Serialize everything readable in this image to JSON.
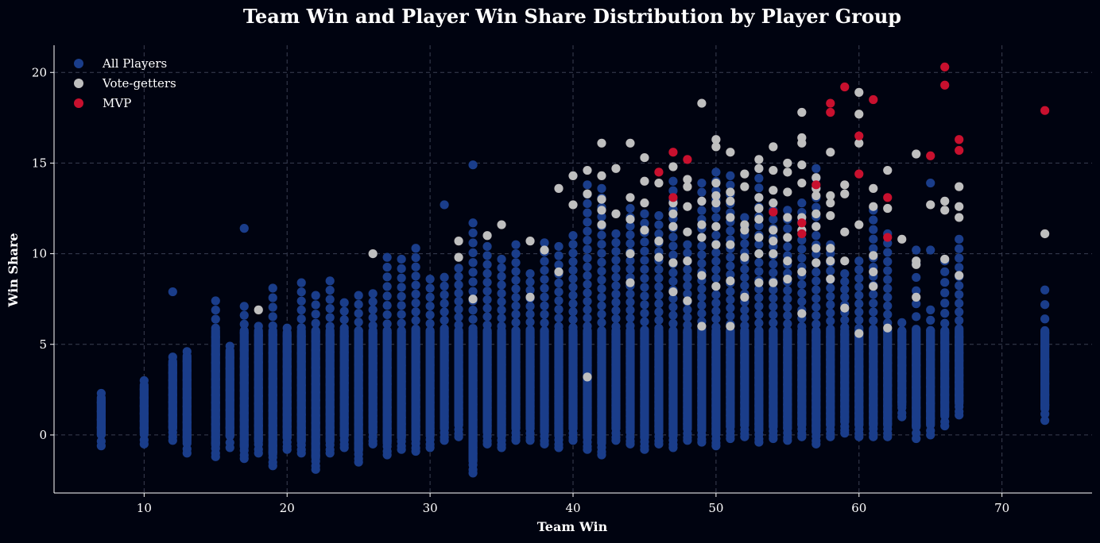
{
  "chart_data": {
    "type": "scatter",
    "title": "Team Win and Player Win Share Distribution by Player Group",
    "xlabel": "Team Win",
    "ylabel": "Win Share",
    "xlim": [
      3.7,
      76.3
    ],
    "ylim": [
      -3.2,
      21.5
    ],
    "xticks": [
      10,
      20,
      30,
      40,
      50,
      60,
      70
    ],
    "yticks": [
      0,
      5,
      10,
      15,
      20
    ],
    "grid": true,
    "legend_position": "top-left",
    "series": [
      {
        "name": "All Players",
        "color": "#1a3d8a",
        "columns": [
          {
            "x": 7,
            "min": -0.6,
            "max": 2.3,
            "n": 8
          },
          {
            "x": 10,
            "min": -0.5,
            "max": 3.0,
            "n": 10
          },
          {
            "x": 12,
            "min": -0.3,
            "max": 4.3,
            "n": 14,
            "extra": [
              7.9
            ]
          },
          {
            "x": 13,
            "min": -1.0,
            "max": 4.6,
            "n": 14
          },
          {
            "x": 15,
            "min": -1.2,
            "max": 7.4,
            "n": 22
          },
          {
            "x": 16,
            "min": -0.7,
            "max": 4.9,
            "n": 12
          },
          {
            "x": 17,
            "min": -1.3,
            "max": 7.1,
            "n": 22,
            "extra": [
              11.4
            ]
          },
          {
            "x": 18,
            "min": -1.0,
            "max": 6.0,
            "n": 18
          },
          {
            "x": 19,
            "min": -1.7,
            "max": 8.1,
            "n": 24
          },
          {
            "x": 20,
            "min": -0.8,
            "max": 5.9,
            "n": 20
          },
          {
            "x": 21,
            "min": -1.0,
            "max": 8.4,
            "n": 24
          },
          {
            "x": 22,
            "min": -1.9,
            "max": 7.7,
            "n": 24
          },
          {
            "x": 23,
            "min": -1.0,
            "max": 8.5,
            "n": 24
          },
          {
            "x": 24,
            "min": -0.7,
            "max": 7.3,
            "n": 22
          },
          {
            "x": 25,
            "min": -1.5,
            "max": 7.7,
            "n": 24
          },
          {
            "x": 26,
            "min": -0.5,
            "max": 7.8,
            "n": 24
          },
          {
            "x": 27,
            "min": -1.1,
            "max": 9.8,
            "n": 26
          },
          {
            "x": 28,
            "min": -0.8,
            "max": 9.7,
            "n": 26
          },
          {
            "x": 29,
            "min": -0.9,
            "max": 10.3,
            "n": 28
          },
          {
            "x": 30,
            "min": -0.7,
            "max": 8.6,
            "n": 24
          },
          {
            "x": 31,
            "min": -0.3,
            "max": 8.7,
            "n": 24,
            "extra": [
              12.7
            ]
          },
          {
            "x": 32,
            "min": -0.1,
            "max": 9.2,
            "n": 26
          },
          {
            "x": 33,
            "min": -2.1,
            "max": 11.7,
            "n": 32,
            "extra": [
              14.9
            ]
          },
          {
            "x": 34,
            "min": -0.5,
            "max": 10.4,
            "n": 28
          },
          {
            "x": 35,
            "min": -0.7,
            "max": 9.7,
            "n": 28
          },
          {
            "x": 36,
            "min": -0.3,
            "max": 10.5,
            "n": 28
          },
          {
            "x": 37,
            "min": -0.3,
            "max": 8.9,
            "n": 26
          },
          {
            "x": 38,
            "min": -0.5,
            "max": 10.6,
            "n": 28
          },
          {
            "x": 39,
            "min": -0.7,
            "max": 10.4,
            "n": 28
          },
          {
            "x": 40,
            "min": -0.3,
            "max": 11.0,
            "n": 30
          },
          {
            "x": 41,
            "min": -0.8,
            "max": 13.8,
            "n": 36
          },
          {
            "x": 42,
            "min": -1.1,
            "max": 13.6,
            "n": 36
          },
          {
            "x": 43,
            "min": -0.3,
            "max": 11.1,
            "n": 30
          },
          {
            "x": 44,
            "min": -0.5,
            "max": 12.5,
            "n": 34
          },
          {
            "x": 45,
            "min": -0.8,
            "max": 12.2,
            "n": 32
          },
          {
            "x": 46,
            "min": -0.5,
            "max": 12.1,
            "n": 32
          },
          {
            "x": 47,
            "min": -0.7,
            "max": 14.0,
            "n": 36
          },
          {
            "x": 48,
            "min": -0.3,
            "max": 10.5,
            "n": 30
          },
          {
            "x": 49,
            "min": -0.4,
            "max": 13.9,
            "n": 36
          },
          {
            "x": 50,
            "min": -0.6,
            "max": 14.5,
            "n": 38
          },
          {
            "x": 51,
            "min": -0.2,
            "max": 14.3,
            "n": 36
          },
          {
            "x": 52,
            "min": -0.1,
            "max": 12.0,
            "n": 32
          },
          {
            "x": 53,
            "min": -0.4,
            "max": 14.7,
            "n": 36
          },
          {
            "x": 54,
            "min": -0.2,
            "max": 12.4,
            "n": 32
          },
          {
            "x": 55,
            "min": -0.3,
            "max": 12.4,
            "n": 32
          },
          {
            "x": 56,
            "min": -0.1,
            "max": 12.8,
            "n": 32
          },
          {
            "x": 57,
            "min": -0.5,
            "max": 14.7,
            "n": 36
          },
          {
            "x": 58,
            "min": -0.1,
            "max": 10.5,
            "n": 28
          },
          {
            "x": 59,
            "min": 0.1,
            "max": 8.9,
            "n": 26
          },
          {
            "x": 60,
            "min": -0.1,
            "max": 9.6,
            "n": 26
          },
          {
            "x": 61,
            "min": -0.1,
            "max": 12.4,
            "n": 30
          },
          {
            "x": 62,
            "min": -0.1,
            "max": 11.1,
            "n": 28
          },
          {
            "x": 63,
            "min": 1.0,
            "max": 6.2,
            "n": 14
          },
          {
            "x": 64,
            "min": -0.2,
            "max": 10.2,
            "n": 18
          },
          {
            "x": 65,
            "min": 0.0,
            "max": 6.9,
            "n": 16,
            "extra": [
              13.9,
              10.2
            ]
          },
          {
            "x": 66,
            "min": 0.5,
            "max": 9.6,
            "n": 20
          },
          {
            "x": 67,
            "min": 1.1,
            "max": 10.8,
            "n": 24
          },
          {
            "x": 73,
            "min": 0.8,
            "max": 8.0,
            "n": 12
          }
        ]
      },
      {
        "name": "Vote-getters",
        "color": "#bfbfbf",
        "points": [
          [
            18,
            6.9
          ],
          [
            26,
            10.0
          ],
          [
            32,
            10.7
          ],
          [
            32,
            9.8
          ],
          [
            33,
            7.5
          ],
          [
            34,
            11.0
          ],
          [
            35,
            11.6
          ],
          [
            37,
            10.7
          ],
          [
            37,
            7.6
          ],
          [
            38,
            10.2
          ],
          [
            39,
            13.6
          ],
          [
            39,
            9.0
          ],
          [
            40,
            14.3
          ],
          [
            40,
            12.7
          ],
          [
            41,
            14.6
          ],
          [
            41,
            13.3
          ],
          [
            41,
            3.2
          ],
          [
            42,
            16.1
          ],
          [
            42,
            14.3
          ],
          [
            42,
            12.4
          ],
          [
            42,
            11.6
          ],
          [
            42,
            13.0
          ],
          [
            43,
            14.7
          ],
          [
            43,
            12.2
          ],
          [
            44,
            16.1
          ],
          [
            44,
            13.1
          ],
          [
            44,
            11.9
          ],
          [
            44,
            10.0
          ],
          [
            44,
            8.4
          ],
          [
            45,
            15.3
          ],
          [
            45,
            14.0
          ],
          [
            45,
            12.8
          ],
          [
            45,
            11.3
          ],
          [
            46,
            13.9
          ],
          [
            46,
            10.7
          ],
          [
            46,
            9.8
          ],
          [
            47,
            14.8
          ],
          [
            47,
            12.8
          ],
          [
            47,
            12.2
          ],
          [
            47,
            11.5
          ],
          [
            47,
            9.5
          ],
          [
            47,
            7.9
          ],
          [
            48,
            14.1
          ],
          [
            48,
            13.7
          ],
          [
            48,
            12.6
          ],
          [
            48,
            11.2
          ],
          [
            48,
            9.6
          ],
          [
            48,
            7.4
          ],
          [
            49,
            18.3
          ],
          [
            49,
            12.9
          ],
          [
            49,
            11.6
          ],
          [
            49,
            10.9
          ],
          [
            49,
            8.8
          ],
          [
            49,
            6.0
          ],
          [
            50,
            16.3
          ],
          [
            50,
            15.9
          ],
          [
            50,
            13.9
          ],
          [
            50,
            13.2
          ],
          [
            50,
            12.8
          ],
          [
            50,
            11.5
          ],
          [
            50,
            10.5
          ],
          [
            50,
            8.2
          ],
          [
            51,
            15.6
          ],
          [
            51,
            13.4
          ],
          [
            51,
            12.9
          ],
          [
            51,
            12.0
          ],
          [
            51,
            10.5
          ],
          [
            51,
            8.5
          ],
          [
            51,
            6.0
          ],
          [
            52,
            14.4
          ],
          [
            52,
            13.7
          ],
          [
            52,
            11.6
          ],
          [
            52,
            11.3
          ],
          [
            52,
            9.8
          ],
          [
            52,
            7.6
          ],
          [
            53,
            15.2
          ],
          [
            53,
            14.7
          ],
          [
            53,
            13.1
          ],
          [
            53,
            12.5
          ],
          [
            53,
            11.9
          ],
          [
            53,
            10.9
          ],
          [
            53,
            10.0
          ],
          [
            53,
            8.4
          ],
          [
            54,
            15.9
          ],
          [
            54,
            14.6
          ],
          [
            54,
            13.5
          ],
          [
            54,
            12.8
          ],
          [
            54,
            11.3
          ],
          [
            54,
            10.7
          ],
          [
            54,
            10.0
          ],
          [
            54,
            8.4
          ],
          [
            55,
            15.0
          ],
          [
            55,
            14.5
          ],
          [
            55,
            13.4
          ],
          [
            55,
            12.0
          ],
          [
            55,
            10.9
          ],
          [
            55,
            9.6
          ],
          [
            55,
            8.6
          ],
          [
            56,
            17.8
          ],
          [
            56,
            16.4
          ],
          [
            56,
            16.1
          ],
          [
            56,
            14.9
          ],
          [
            56,
            13.9
          ],
          [
            56,
            12.0
          ],
          [
            56,
            11.3
          ],
          [
            56,
            9.0
          ],
          [
            56,
            6.7
          ],
          [
            57,
            14.2
          ],
          [
            57,
            13.6
          ],
          [
            57,
            13.2
          ],
          [
            57,
            12.2
          ],
          [
            57,
            11.5
          ],
          [
            57,
            10.3
          ],
          [
            57,
            9.5
          ],
          [
            58,
            15.6
          ],
          [
            58,
            13.2
          ],
          [
            58,
            12.8
          ],
          [
            58,
            12.1
          ],
          [
            58,
            10.3
          ],
          [
            58,
            9.6
          ],
          [
            58,
            8.6
          ],
          [
            59,
            13.8
          ],
          [
            59,
            13.3
          ],
          [
            59,
            11.2
          ],
          [
            59,
            9.6
          ],
          [
            59,
            7.0
          ],
          [
            60,
            18.9
          ],
          [
            60,
            17.7
          ],
          [
            60,
            16.1
          ],
          [
            60,
            11.6
          ],
          [
            60,
            5.6
          ],
          [
            61,
            13.6
          ],
          [
            61,
            12.6
          ],
          [
            61,
            9.9
          ],
          [
            61,
            9.0
          ],
          [
            61,
            8.2
          ],
          [
            62,
            14.6
          ],
          [
            62,
            12.5
          ],
          [
            62,
            5.9
          ],
          [
            63,
            10.8
          ],
          [
            64,
            15.5
          ],
          [
            64,
            9.6
          ],
          [
            64,
            9.4
          ],
          [
            64,
            7.6
          ],
          [
            65,
            12.7
          ],
          [
            66,
            12.9
          ],
          [
            66,
            12.4
          ],
          [
            66,
            9.7
          ],
          [
            67,
            13.7
          ],
          [
            67,
            12.6
          ],
          [
            67,
            12.0
          ],
          [
            67,
            8.8
          ],
          [
            73,
            11.1
          ]
        ]
      },
      {
        "name": "MVP",
        "color": "#c8102e",
        "points": [
          [
            46,
            14.5
          ],
          [
            47,
            15.6
          ],
          [
            47,
            13.1
          ],
          [
            48,
            15.2
          ],
          [
            54,
            12.3
          ],
          [
            56,
            11.7
          ],
          [
            56,
            11.1
          ],
          [
            57,
            13.8
          ],
          [
            58,
            18.3
          ],
          [
            58,
            17.8
          ],
          [
            59,
            19.2
          ],
          [
            60,
            16.5
          ],
          [
            60,
            14.4
          ],
          [
            61,
            18.5
          ],
          [
            62,
            13.1
          ],
          [
            62,
            10.9
          ],
          [
            65,
            15.4
          ],
          [
            66,
            20.3
          ],
          [
            66,
            19.3
          ],
          [
            67,
            16.3
          ],
          [
            67,
            15.7
          ],
          [
            73,
            17.9
          ]
        ]
      }
    ]
  }
}
